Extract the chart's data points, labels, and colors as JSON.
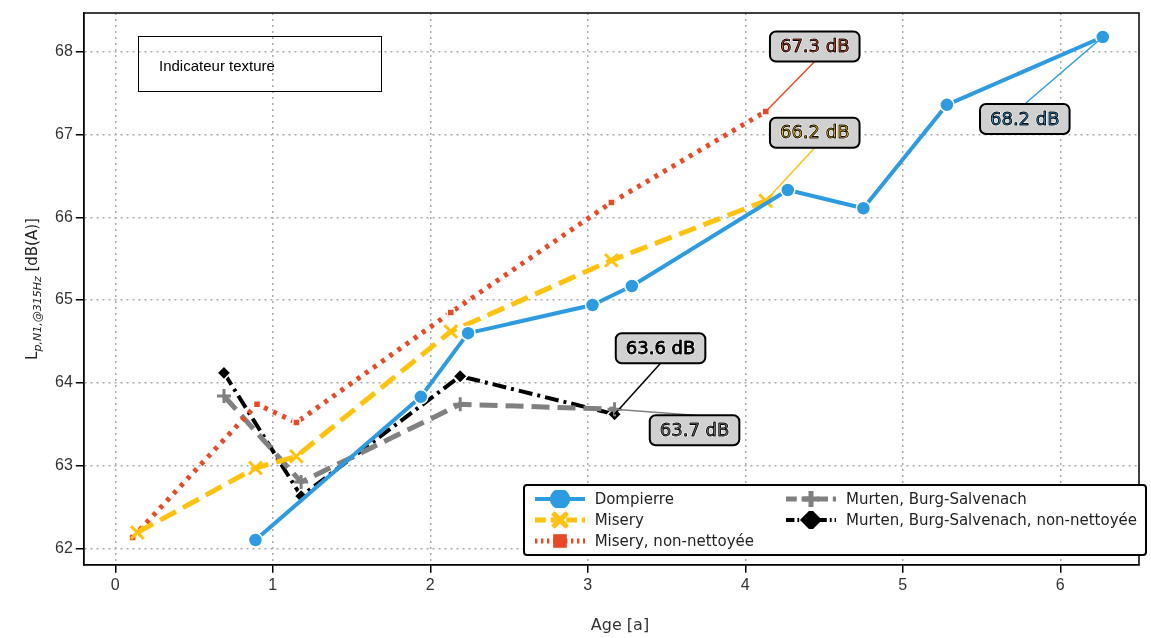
{
  "chart_data": {
    "type": "line",
    "xlabel": "Age [a]",
    "ylabel": "L$_{p,N1,@315Hz}$  [dB(A)]",
    "xlim": [
      -0.2,
      6.5
    ],
    "xticks": [
      0,
      1,
      2,
      3,
      4,
      5,
      6
    ],
    "ylim": [
      61.8,
      68.47
    ],
    "yticks": [
      62,
      63,
      64,
      65,
      66,
      67,
      68
    ],
    "grid": true,
    "legend": "bottom right",
    "series": [
      {
        "name": "Dompierre",
        "color": "#2e9be0",
        "marker": "circle",
        "line_style": "solid",
        "x": [
          0.89,
          1.94,
          2.24,
          3.03,
          3.28,
          4.27,
          4.75,
          5.28,
          6.27
        ],
        "values": [
          62.1,
          63.83,
          64.6,
          64.94,
          65.17,
          66.33,
          66.11,
          67.36,
          68.18
        ]
      },
      {
        "name": "Misery",
        "color": "#ffc20e",
        "marker": "cross",
        "line_style": "dashed",
        "x": [
          0.14,
          0.89,
          1.15,
          2.13,
          3.15,
          4.13
        ],
        "values": [
          62.19,
          62.97,
          63.11,
          64.62,
          65.48,
          66.2
        ]
      },
      {
        "name": "Misery, non-nettoyée",
        "color": "#e84a27",
        "marker": "square",
        "line_style": "dotted",
        "x": [
          0.11,
          0.9,
          1.15,
          2.13,
          3.15,
          4.13
        ],
        "values": [
          62.13,
          63.74,
          63.52,
          64.85,
          66.18,
          67.28
        ]
      },
      {
        "name": "Murten, Burg-Salvenach",
        "color": "#808080",
        "marker": "plus",
        "line_style": "dashed",
        "x": [
          0.69,
          1.18,
          2.19,
          3.17
        ],
        "values": [
          63.84,
          62.8,
          63.74,
          63.68
        ]
      },
      {
        "name": "Murten, Burg-Salvenach, non-nettoyée",
        "color": "#000000",
        "marker": "diamond",
        "line_style": "dashdot",
        "x": [
          0.69,
          1.18,
          2.19,
          3.17
        ],
        "values": [
          64.12,
          62.63,
          64.08,
          63.62
        ]
      }
    ],
    "annotations": [
      "Indicateur texture",
      {
        "text": "67.3 dB",
        "x": 4.13,
        "y": 67.28
      },
      {
        "text": "66.2 dB",
        "x": 4.13,
        "y": 66.2
      },
      {
        "text": "68.2 dB",
        "x": 6.27,
        "y": 68.18
      },
      {
        "text": "63.6 dB",
        "x": 3.17,
        "y": 63.62
      },
      {
        "text": "63.7 dB",
        "x": 3.17,
        "y": 63.68
      }
    ]
  }
}
